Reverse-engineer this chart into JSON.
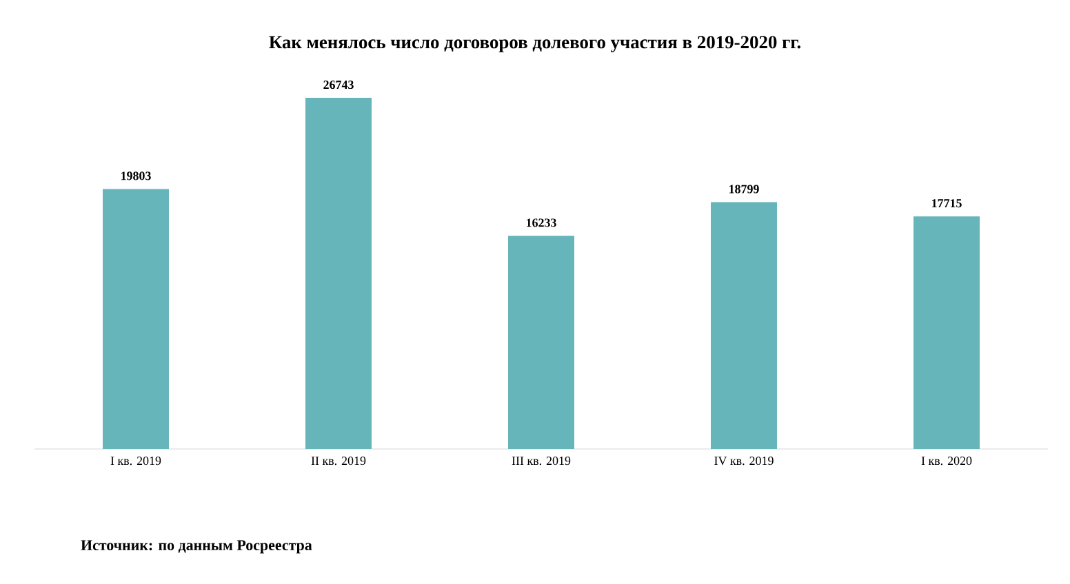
{
  "chart_data": {
    "type": "bar",
    "title": "Как менялось число договоров долевого участия в 2019-2020 гг.",
    "categories": [
      "I кв. 2019",
      "II кв. 2019",
      "III кв. 2019",
      "IV кв. 2019",
      "I кв. 2020"
    ],
    "values": [
      19803,
      26743,
      16233,
      18799,
      17715
    ],
    "color": "#66b5ba",
    "data_labels": true,
    "tick_labels": "x",
    "annotations": [
      "Источник: по данным Росреестра"
    ]
  }
}
